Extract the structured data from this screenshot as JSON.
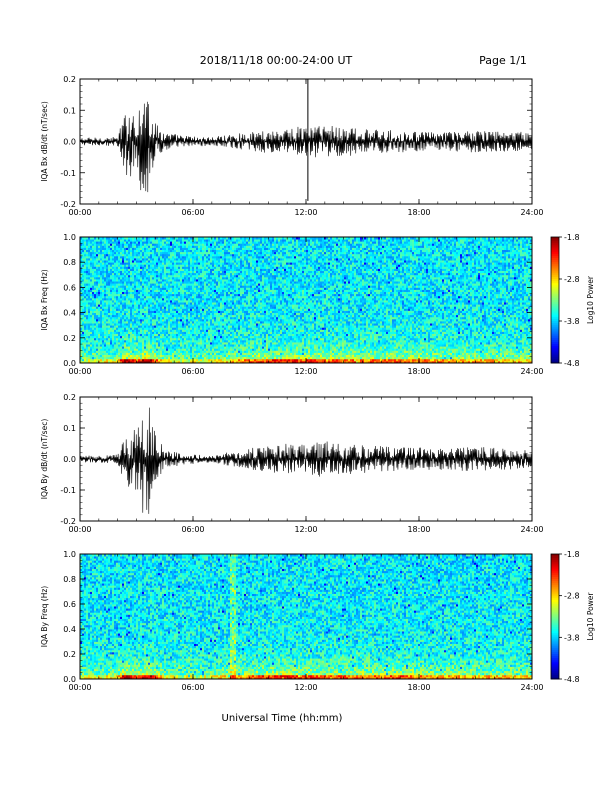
{
  "header": {
    "title": "2018/11/18  00:00-24:00 UT",
    "page": "Page 1/1"
  },
  "xaxis_label": "Universal Time (hh:mm)",
  "chart_data": [
    {
      "type": "line",
      "ylabel": "IQA Bx dB/dt (nT/sec)",
      "xlim": [
        "00:00",
        "24:00"
      ],
      "ylim": [
        -0.2,
        0.2
      ],
      "x_ticks": [
        "00:00",
        "06:00",
        "12:00",
        "18:00",
        "24:00"
      ],
      "y_ticks": [
        "0.2",
        "0.1",
        "0.0",
        "-0.1",
        "-0.2"
      ],
      "envelope": {
        "x_hours": [
          0,
          2,
          2.3,
          2.6,
          3.0,
          3.3,
          3.6,
          4.0,
          4.5,
          5.5,
          6.5,
          7.0,
          9.0,
          11.0,
          12.0,
          13.0,
          15.0,
          17.0,
          19.0,
          21.0,
          24.0
        ],
        "max": [
          0.012,
          0.015,
          0.08,
          0.13,
          0.08,
          0.16,
          0.18,
          0.06,
          0.03,
          0.02,
          0.015,
          0.015,
          0.03,
          0.045,
          0.05,
          0.06,
          0.04,
          0.035,
          0.03,
          0.035,
          0.03
        ],
        "min": [
          -0.012,
          -0.015,
          -0.1,
          -0.13,
          -0.06,
          -0.2,
          -0.18,
          -0.05,
          -0.03,
          -0.02,
          -0.015,
          -0.015,
          -0.03,
          -0.045,
          -0.05,
          -0.06,
          -0.04,
          -0.035,
          -0.03,
          -0.035,
          -0.03
        ]
      },
      "spikes": [
        {
          "x_hours": 12.1,
          "max": 0.21,
          "min": -0.19
        }
      ]
    },
    {
      "type": "heatmap",
      "ylabel": "IQA Bx Freq (Hz)",
      "xlim": [
        "00:00",
        "24:00"
      ],
      "ylim": [
        0.0,
        1.0
      ],
      "x_ticks": [
        "00:00",
        "06:00",
        "12:00",
        "18:00",
        "24:00"
      ],
      "y_ticks": [
        "1.0",
        "0.8",
        "0.6",
        "0.4",
        "0.2",
        "0.0"
      ],
      "colorbar": {
        "label": "Log10 Power",
        "range": [
          -4.8,
          -1.8
        ],
        "ticks": [
          "-1.8",
          "-2.8",
          "-3.8",
          "-4.8"
        ]
      }
    },
    {
      "type": "line",
      "ylabel": "IQA By dB/dt (nT/sec)",
      "xlim": [
        "00:00",
        "24:00"
      ],
      "ylim": [
        -0.2,
        0.2
      ],
      "x_ticks": [
        "00:00",
        "06:00",
        "12:00",
        "18:00",
        "24:00"
      ],
      "y_ticks": [
        "0.2",
        "0.1",
        "0.0",
        "-0.1",
        "-0.2"
      ],
      "envelope": {
        "x_hours": [
          0,
          2,
          2.3,
          2.6,
          3.0,
          3.3,
          3.6,
          4.0,
          4.5,
          5.5,
          6.5,
          7.0,
          9.0,
          11.0,
          12.0,
          13.0,
          15.0,
          17.0,
          19.0,
          21.0,
          24.0
        ],
        "max": [
          0.01,
          0.015,
          0.07,
          0.1,
          0.12,
          0.2,
          0.2,
          0.08,
          0.03,
          0.02,
          0.012,
          0.012,
          0.035,
          0.05,
          0.05,
          0.06,
          0.045,
          0.04,
          0.035,
          0.04,
          0.03
        ],
        "min": [
          -0.01,
          -0.015,
          -0.08,
          -0.1,
          -0.12,
          -0.2,
          -0.2,
          -0.08,
          -0.03,
          -0.02,
          -0.012,
          -0.012,
          -0.035,
          -0.05,
          -0.05,
          -0.06,
          -0.045,
          -0.04,
          -0.035,
          -0.04,
          -0.03
        ]
      },
      "spikes": []
    },
    {
      "type": "heatmap",
      "ylabel": "IQA By Freq (Hz)",
      "xlim": [
        "00:00",
        "24:00"
      ],
      "ylim": [
        0.0,
        1.0
      ],
      "x_ticks": [
        "00:00",
        "06:00",
        "12:00",
        "18:00",
        "24:00"
      ],
      "y_ticks": [
        "1.0",
        "0.8",
        "0.6",
        "0.4",
        "0.2",
        "0.0"
      ],
      "colorbar": {
        "label": "Log10 Power",
        "range": [
          -4.8,
          -1.8
        ],
        "ticks": [
          "-1.8",
          "-2.8",
          "-3.8",
          "-4.8"
        ]
      }
    }
  ]
}
